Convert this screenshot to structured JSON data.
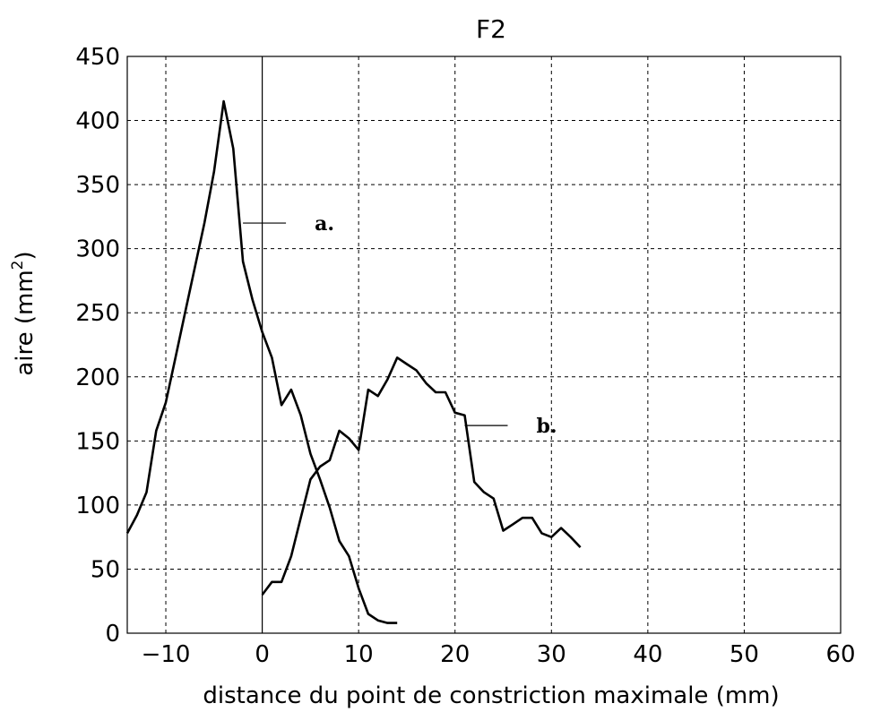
{
  "chart_data": {
    "type": "line",
    "title": "F2",
    "xlabel": "distance du point de constriction maximale (mm)",
    "ylabel_base": "aire (mm",
    "ylabel_sup": "2",
    "ylabel_end": ")",
    "xlim": [
      -14,
      60
    ],
    "ylim": [
      0,
      450
    ],
    "xticks": [
      -10,
      0,
      10,
      20,
      30,
      40,
      50,
      60
    ],
    "yticks": [
      0,
      50,
      100,
      150,
      200,
      250,
      300,
      350,
      400,
      450
    ],
    "grid": true,
    "vertical_line_x": 0,
    "series": [
      {
        "label": "a.",
        "points": [
          [
            -14,
            78
          ],
          [
            -13,
            92
          ],
          [
            -12,
            110
          ],
          [
            -11,
            158
          ],
          [
            -10,
            180
          ],
          [
            -9,
            215
          ],
          [
            -8,
            250
          ],
          [
            -7,
            285
          ],
          [
            -6,
            320
          ],
          [
            -5,
            360
          ],
          [
            -4,
            415
          ],
          [
            -3,
            378
          ],
          [
            -2,
            290
          ],
          [
            -1,
            260
          ],
          [
            0,
            235
          ],
          [
            1,
            215
          ],
          [
            2,
            178
          ],
          [
            3,
            190
          ],
          [
            4,
            170
          ],
          [
            5,
            140
          ],
          [
            6,
            120
          ],
          [
            7,
            98
          ],
          [
            8,
            72
          ],
          [
            9,
            60
          ],
          [
            10,
            35
          ],
          [
            11,
            15
          ],
          [
            12,
            10
          ],
          [
            13,
            8
          ],
          [
            14,
            8
          ]
        ],
        "label_anchor": [
          -2,
          320
        ]
      },
      {
        "label": "b.",
        "points": [
          [
            0,
            30
          ],
          [
            1,
            40
          ],
          [
            2,
            40
          ],
          [
            3,
            60
          ],
          [
            4,
            90
          ],
          [
            5,
            120
          ],
          [
            6,
            130
          ],
          [
            7,
            135
          ],
          [
            8,
            158
          ],
          [
            9,
            152
          ],
          [
            10,
            143
          ],
          [
            11,
            190
          ],
          [
            12,
            185
          ],
          [
            13,
            198
          ],
          [
            14,
            215
          ],
          [
            15,
            210
          ],
          [
            16,
            205
          ],
          [
            17,
            195
          ],
          [
            18,
            188
          ],
          [
            19,
            188
          ],
          [
            20,
            172
          ],
          [
            21,
            170
          ],
          [
            22,
            118
          ],
          [
            23,
            110
          ],
          [
            24,
            105
          ],
          [
            25,
            80
          ],
          [
            26,
            85
          ],
          [
            27,
            90
          ],
          [
            28,
            90
          ],
          [
            29,
            78
          ],
          [
            30,
            75
          ],
          [
            31,
            82
          ],
          [
            32,
            75
          ],
          [
            33,
            67
          ]
        ],
        "label_anchor": [
          21,
          162
        ]
      }
    ]
  }
}
